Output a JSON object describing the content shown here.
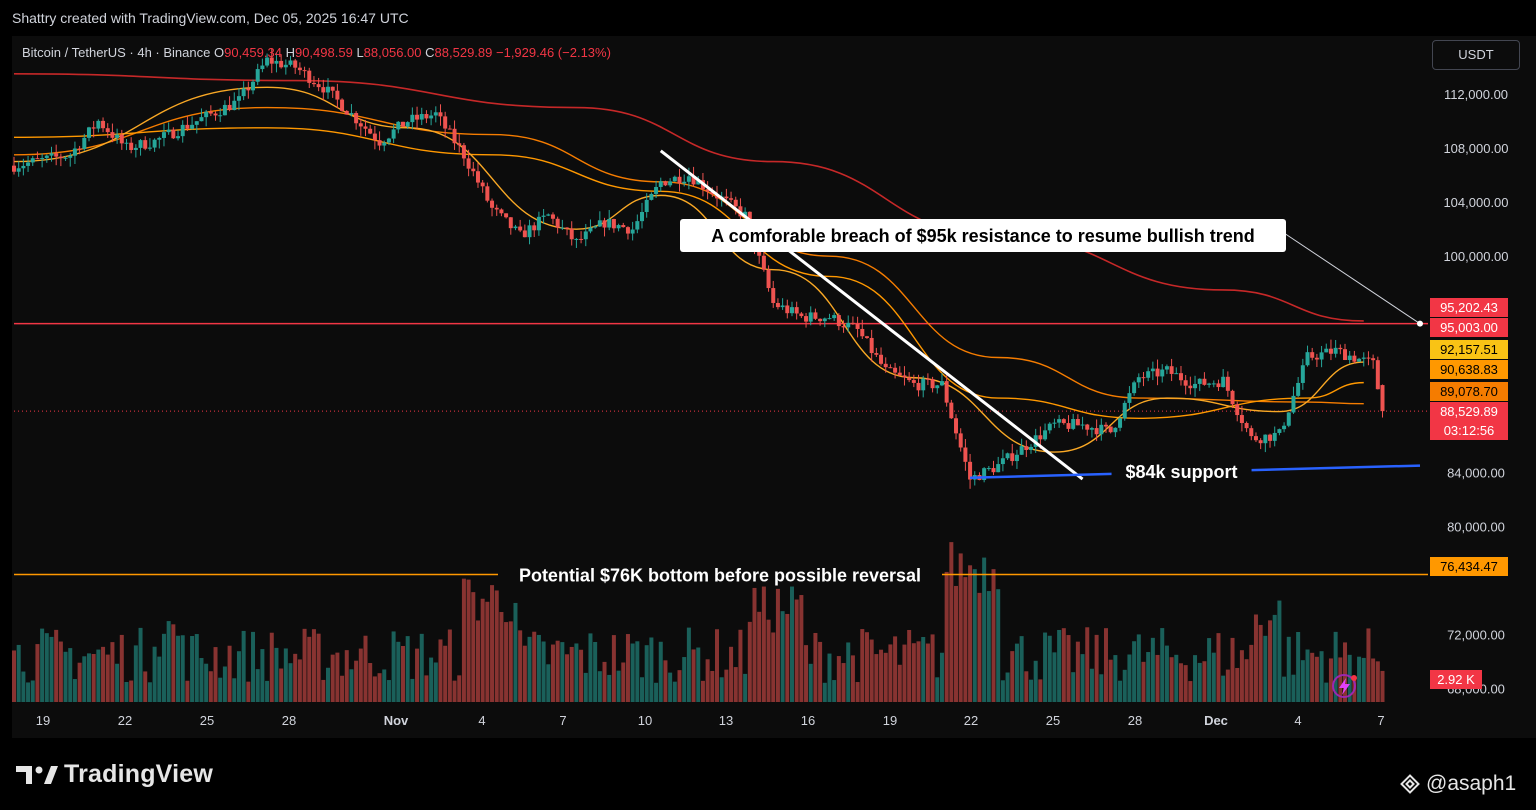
{
  "header": {
    "credit": "Shattry created with TradingView.com, Dec 05, 2025 16:47 UTC"
  },
  "legend": {
    "symbol": "Bitcoin / TetherUS · 4h · Binance",
    "open_label": "O",
    "open": "90,459.34",
    "high_label": "H",
    "high": "90,498.59",
    "low_label": "L",
    "low": "88,056.00",
    "close_label": "C",
    "close": "88,529.89",
    "change": "−1,929.46 (−2.13%)"
  },
  "currency_button": "USDT",
  "chart_data": {
    "type": "candlestick",
    "interval": "4h",
    "y_axis": {
      "ticks": [
        "112,000.00",
        "108,000.00",
        "104,000.00",
        "100,000.00",
        "84,000.00",
        "80,000.00",
        "72,000.00",
        "68,000.00"
      ],
      "tick_values": [
        112000,
        108000,
        104000,
        100000,
        84000,
        80000,
        72000,
        68000
      ],
      "range": [
        67000,
        116000
      ]
    },
    "x_axis": {
      "ticks": [
        "19",
        "22",
        "25",
        "28",
        "Nov",
        "4",
        "7",
        "10",
        "13",
        "16",
        "19",
        "22",
        "25",
        "28",
        "Dec",
        "4",
        "7"
      ],
      "range": [
        "Oct 18",
        "Dec 7"
      ]
    },
    "price_anchors": [
      {
        "t": "Oct 18",
        "price": 106700
      },
      {
        "t": "Oct 20",
        "price": 107500
      },
      {
        "t": "Oct 21",
        "price": 110000
      },
      {
        "t": "Oct 22",
        "price": 108000
      },
      {
        "t": "Oct 23",
        "price": 108500
      },
      {
        "t": "Oct 24",
        "price": 109500
      },
      {
        "t": "Oct 25",
        "price": 110500
      },
      {
        "t": "Oct 26",
        "price": 111500
      },
      {
        "t": "Oct 27",
        "price": 114500
      },
      {
        "t": "Oct 28",
        "price": 114000
      },
      {
        "t": "Oct 29",
        "price": 112500
      },
      {
        "t": "Oct 30",
        "price": 110500
      },
      {
        "t": "Oct 31",
        "price": 108500
      },
      {
        "t": "Nov 1",
        "price": 110000
      },
      {
        "t": "Nov 2",
        "price": 110500
      },
      {
        "t": "Nov 3",
        "price": 107500
      },
      {
        "t": "Nov 4",
        "price": 103500
      },
      {
        "t": "Nov 5",
        "price": 101500
      },
      {
        "t": "Nov 6",
        "price": 103000
      },
      {
        "t": "Nov 7",
        "price": 101000
      },
      {
        "t": "Nov 8",
        "price": 102500
      },
      {
        "t": "Nov 9",
        "price": 102000
      },
      {
        "t": "Nov 10",
        "price": 105500
      },
      {
        "t": "Nov 11",
        "price": 106000
      },
      {
        "t": "Nov 12",
        "price": 104500
      },
      {
        "t": "Nov 13",
        "price": 103000
      },
      {
        "t": "Nov 14",
        "price": 96500
      },
      {
        "t": "Nov 15",
        "price": 95500
      },
      {
        "t": "Nov 16",
        "price": 95500
      },
      {
        "t": "Nov 17",
        "price": 94500
      },
      {
        "t": "Nov 18",
        "price": 91500
      },
      {
        "t": "Nov 19",
        "price": 90500
      },
      {
        "t": "Nov 20",
        "price": 90500
      },
      {
        "t": "Nov 21",
        "price": 83500
      },
      {
        "t": "Nov 22",
        "price": 84500
      },
      {
        "t": "Nov 23",
        "price": 86000
      },
      {
        "t": "Nov 24",
        "price": 87500
      },
      {
        "t": "Nov 25",
        "price": 87500
      },
      {
        "t": "Nov 26",
        "price": 87000
      },
      {
        "t": "Nov 27",
        "price": 91000
      },
      {
        "t": "Nov 28",
        "price": 91500
      },
      {
        "t": "Nov 29",
        "price": 90500
      },
      {
        "t": "Nov 30",
        "price": 90800
      },
      {
        "t": "Dec 1",
        "price": 86500
      },
      {
        "t": "Dec 2",
        "price": 86800
      },
      {
        "t": "Dec 3",
        "price": 92500
      },
      {
        "t": "Dec 4",
        "price": 93000
      },
      {
        "t": "Dec 5 08:00",
        "price": 92000
      },
      {
        "t": "Dec 5 16:00",
        "price": 88530
      }
    ],
    "moving_averages": [
      {
        "color": "#f57c00",
        "points": [
          {
            "t": "Oct 18",
            "v": 107500
          },
          {
            "t": "Oct 27",
            "v": 111000
          },
          {
            "t": "Nov 4",
            "v": 109000
          },
          {
            "t": "Nov 10",
            "v": 105500
          },
          {
            "t": "Nov 16",
            "v": 100000
          },
          {
            "t": "Nov 22",
            "v": 92500
          },
          {
            "t": "Nov 27",
            "v": 89500
          },
          {
            "t": "Dec 3",
            "v": 89200
          },
          {
            "t": "Dec 5",
            "v": 89079
          }
        ]
      },
      {
        "color": "#ff9800",
        "points": [
          {
            "t": "Oct 18",
            "v": 108800
          },
          {
            "t": "Oct 27",
            "v": 109500
          },
          {
            "t": "Nov 4",
            "v": 107500
          },
          {
            "t": "Nov 10",
            "v": 104800
          },
          {
            "t": "Nov 16",
            "v": 98500
          },
          {
            "t": "Nov 22",
            "v": 89500
          },
          {
            "t": "Nov 27",
            "v": 88000
          },
          {
            "t": "Dec 3",
            "v": 89500
          },
          {
            "t": "Dec 5",
            "v": 90639
          }
        ]
      },
      {
        "color": "#f9a825",
        "points": [
          {
            "t": "Oct 18",
            "v": 107000
          },
          {
            "t": "Oct 27",
            "v": 112500
          },
          {
            "t": "Nov 1",
            "v": 109500
          },
          {
            "t": "Nov 7",
            "v": 102000
          },
          {
            "t": "Nov 10",
            "v": 104500
          },
          {
            "t": "Nov 14",
            "v": 99000
          },
          {
            "t": "Nov 19",
            "v": 91000
          },
          {
            "t": "Nov 24",
            "v": 85500
          },
          {
            "t": "Nov 28",
            "v": 89500
          },
          {
            "t": "Dec 2",
            "v": 88500
          },
          {
            "t": "Dec 5",
            "v": 92158
          }
        ]
      },
      {
        "color": "#c62828",
        "points": [
          {
            "t": "Oct 18",
            "v": 113500
          },
          {
            "t": "Oct 28",
            "v": 113000
          },
          {
            "t": "Nov 7",
            "v": 111000
          },
          {
            "t": "Nov 14",
            "v": 107000
          },
          {
            "t": "Nov 22",
            "v": 101500
          },
          {
            "t": "Nov 30",
            "v": 97500
          },
          {
            "t": "Dec 5",
            "v": 95202
          }
        ]
      }
    ],
    "price_labels": [
      {
        "value": 95202.43,
        "text": "95,202.43",
        "color": "#f23645"
      },
      {
        "value": 95003.0,
        "text": "95,003.00",
        "color": "#f23645"
      },
      {
        "value": 92157.51,
        "text": "92,157.51",
        "color": "#f9c315"
      },
      {
        "value": 90638.83,
        "text": "90,638.83",
        "color": "#ff9800"
      },
      {
        "value": 89078.7,
        "text": "89,078.70",
        "color": "#f57c00"
      },
      {
        "value": 88529.89,
        "text": "88,529.89",
        "color": "#f23645",
        "countdown": "03:12:56"
      },
      {
        "value": 76434.47,
        "text": "76,434.47",
        "color": "#ff9800"
      }
    ],
    "volume_label": "2.92 K",
    "annotations": {
      "resistance": {
        "value": 95003,
        "text": "A comforable breach of $95k resistance to resume bullish trend",
        "pointer_to": "Dec 7"
      },
      "support": {
        "start": {
          "t": "Nov 21",
          "v": 83600
        },
        "end": {
          "t": "Dec 7",
          "v": 84500
        },
        "text": "$84k support"
      },
      "bottom": {
        "value": 76434.47,
        "text": "Potential $76K bottom before possible reversal"
      },
      "trendline": {
        "start": {
          "t": "Nov 10",
          "v": 107800
        },
        "end": {
          "t": "Nov 25",
          "v": 83500
        }
      }
    }
  },
  "footer": {
    "brand": "TradingView",
    "author": "@asaph1"
  }
}
